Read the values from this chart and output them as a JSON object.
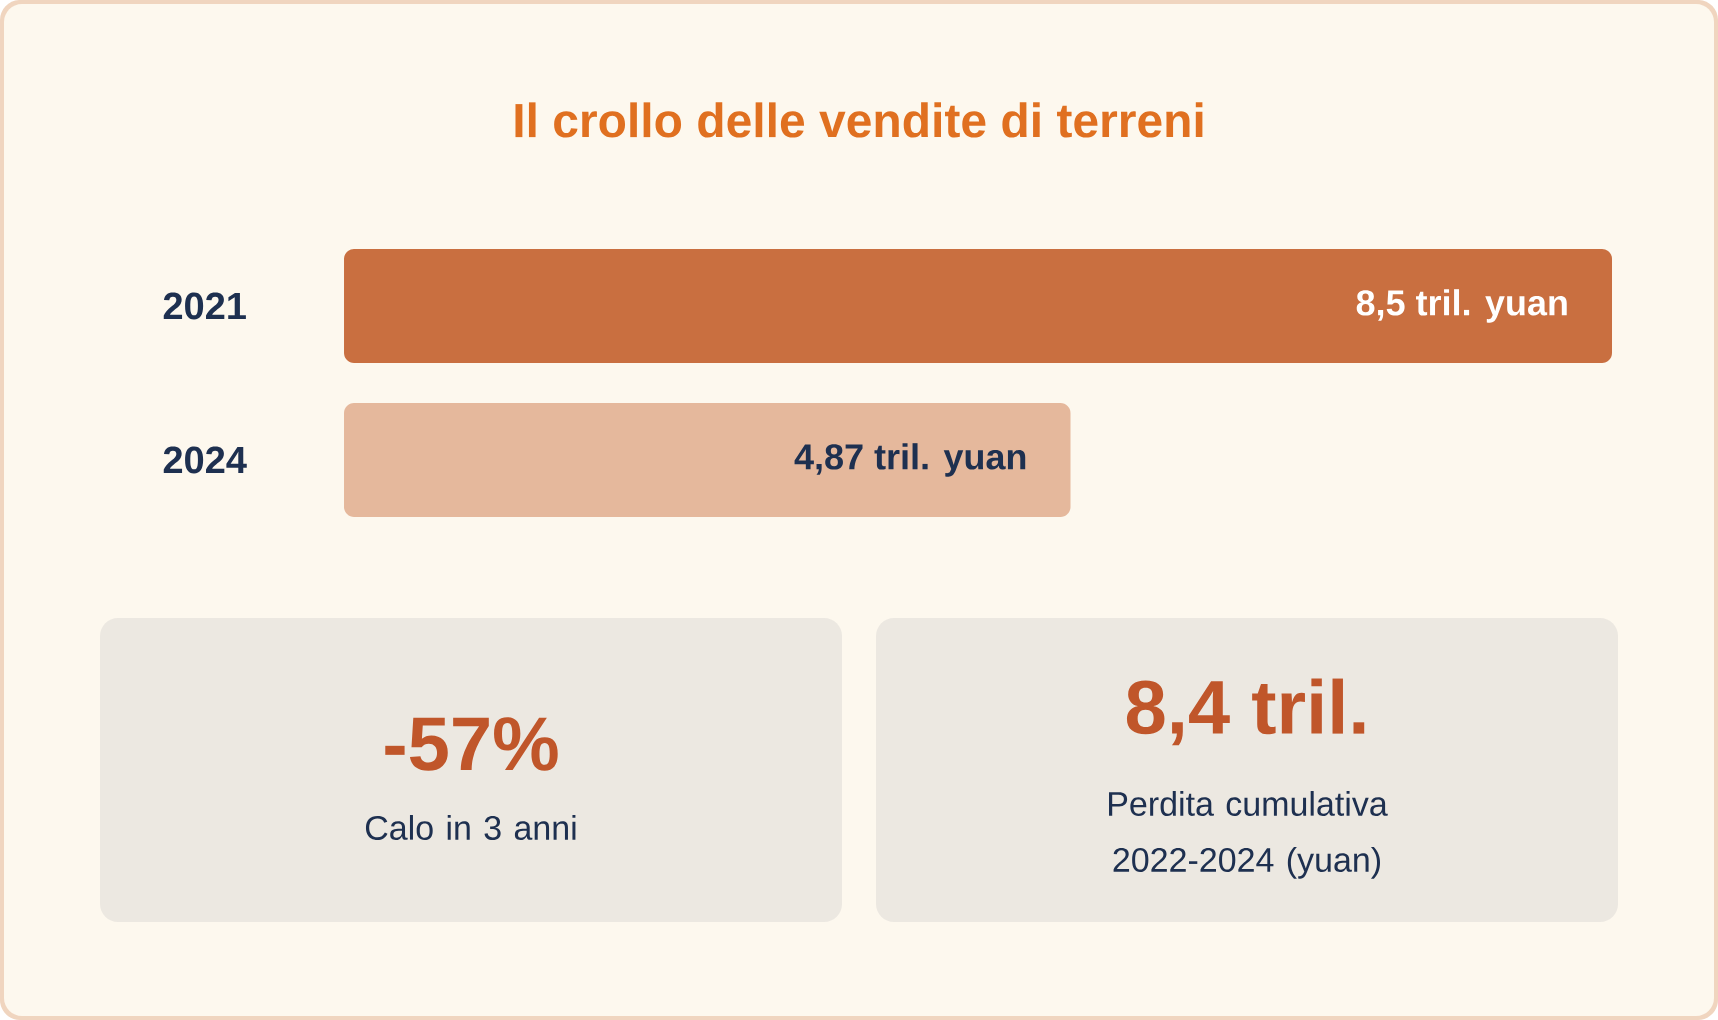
{
  "chart_data": [
    {
      "type": "bar",
      "title": "Il crollo delle vendite di terreni",
      "orientation": "horizontal",
      "categories": [
        "2021",
        "2024"
      ],
      "values": [
        8.5,
        4.87
      ],
      "colors": [
        "#c96f40",
        "#e5b89c"
      ],
      "value_labels": [
        "8,5 tril. yuan",
        "4,87 tril. yuan"
      ],
      "xlim": [
        0,
        8.5
      ],
      "tick_labels": "y"
    },
    {
      "type": "other",
      "annotations": [
        "-57%",
        "Calo in 3 anni",
        "8,4 tril.",
        "Perdita cumulativa 2022-2024 (yuan)"
      ]
    }
  ]
}
